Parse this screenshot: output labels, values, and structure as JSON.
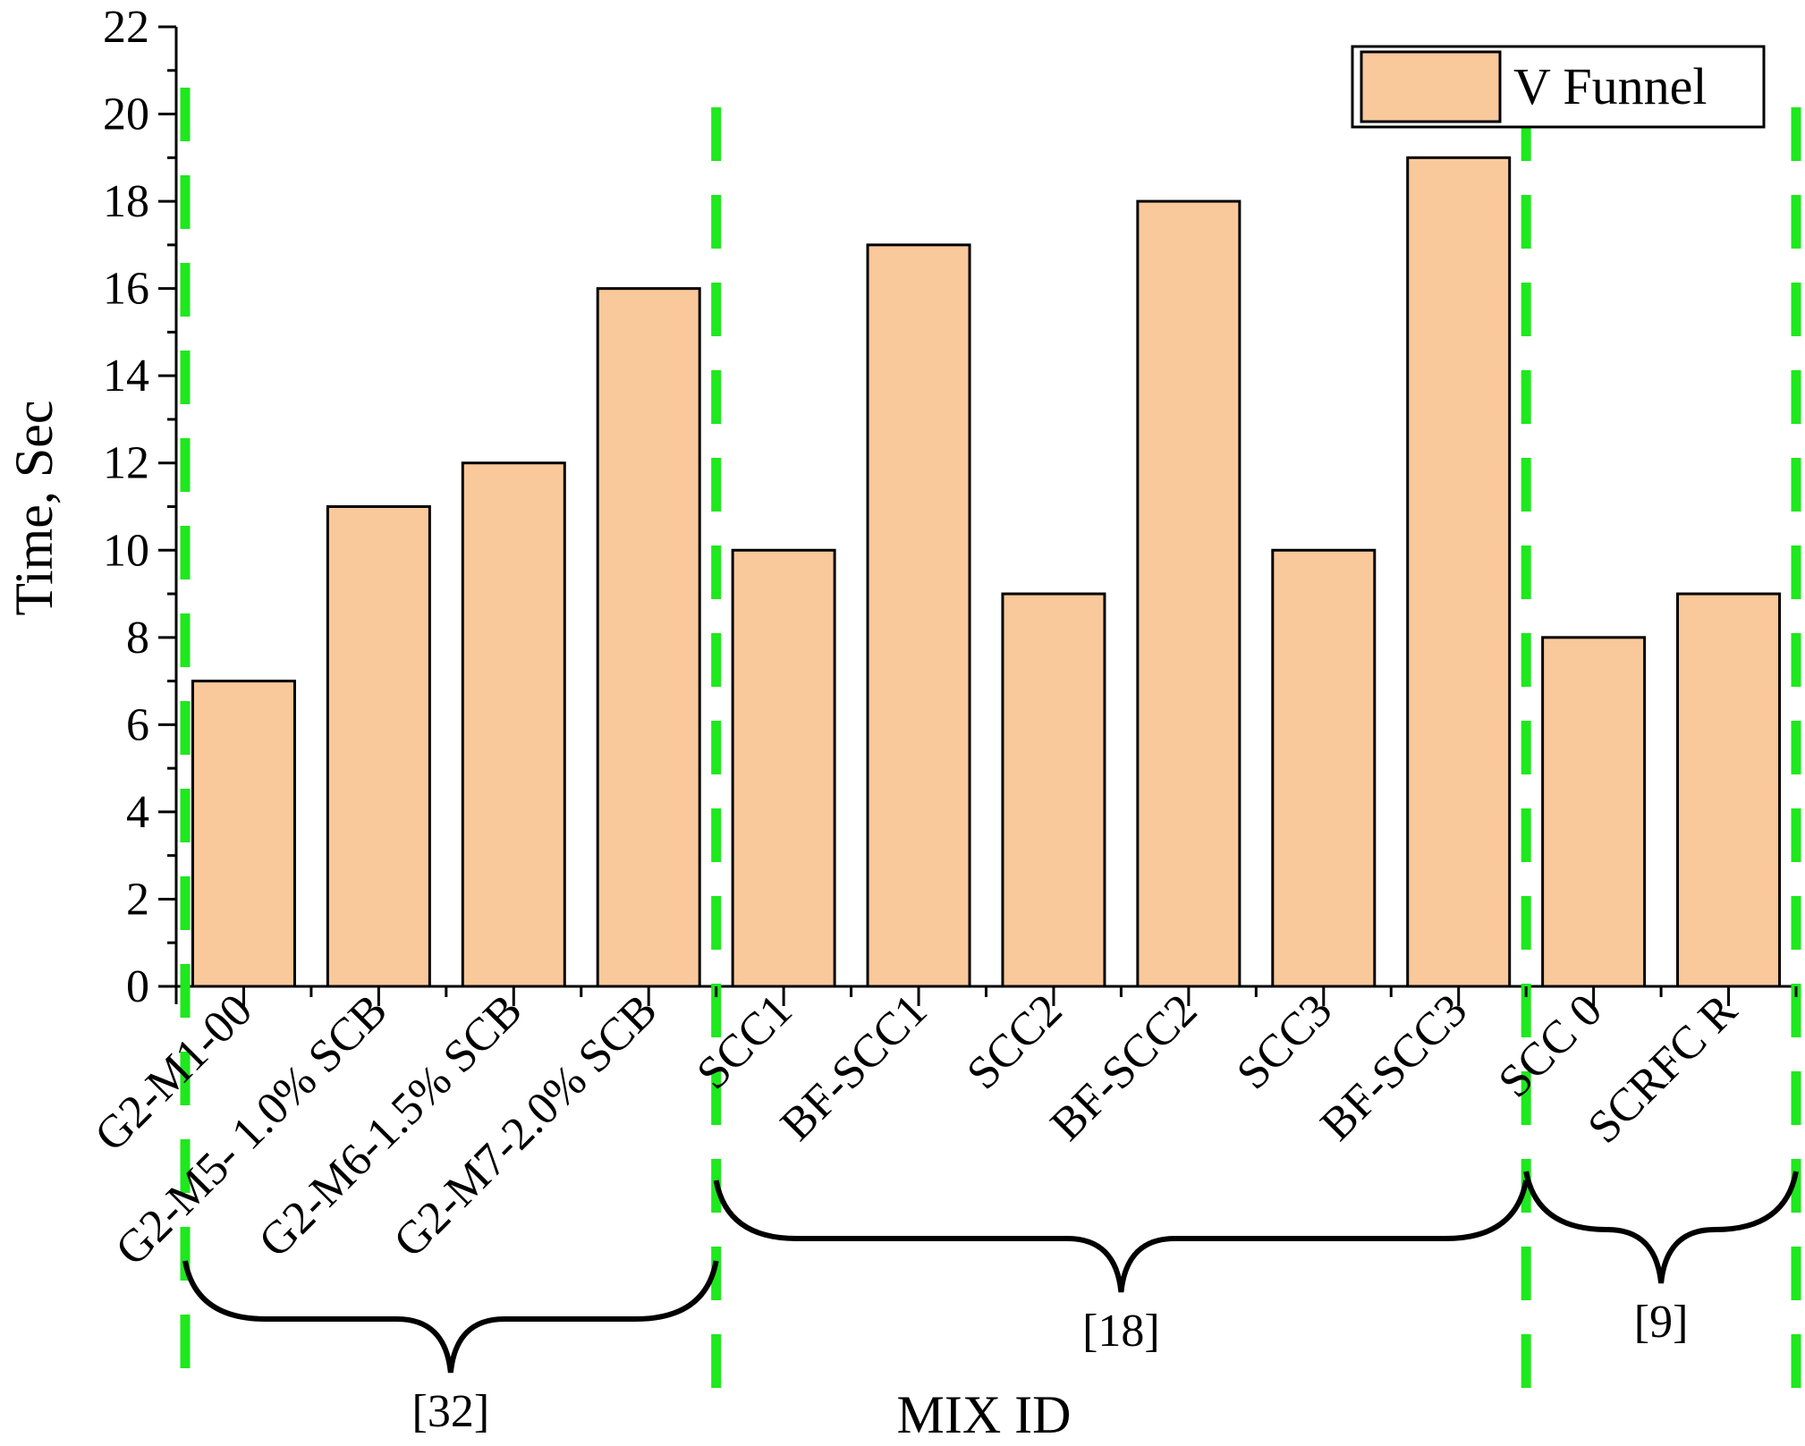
{
  "chart_data": {
    "type": "bar",
    "title": "",
    "xlabel": "MIX ID",
    "ylabel": "Time, Sec",
    "ylim": [
      0,
      22
    ],
    "yticks": [
      0,
      2,
      4,
      6,
      8,
      10,
      12,
      14,
      16,
      18,
      20,
      22
    ],
    "categories": [
      "G2-M1-00",
      "G2-M5- 1.0% SCB",
      "G2-M6-1.5% SCB",
      "G2-M7-2.0% SCB",
      "SCC1",
      "BF-SCC1",
      "SCC2",
      "BF-SCC2",
      "SCC3",
      "BF-SCC3",
      "SCC 0",
      "SCRFC R"
    ],
    "series": [
      {
        "name": "V Funnel",
        "values": [
          7,
          11,
          12,
          16,
          10,
          17,
          9,
          18,
          10,
          19,
          8,
          9
        ],
        "color": "#f9c89b"
      }
    ],
    "grid": false,
    "legend_position": "top-right",
    "groups": [
      {
        "label": "[32]",
        "start": 0,
        "end": 3
      },
      {
        "label": "[18]",
        "start": 4,
        "end": 9
      },
      {
        "label": "[9]",
        "start": 10,
        "end": 11
      }
    ],
    "separator_color": "#1ee81e"
  }
}
